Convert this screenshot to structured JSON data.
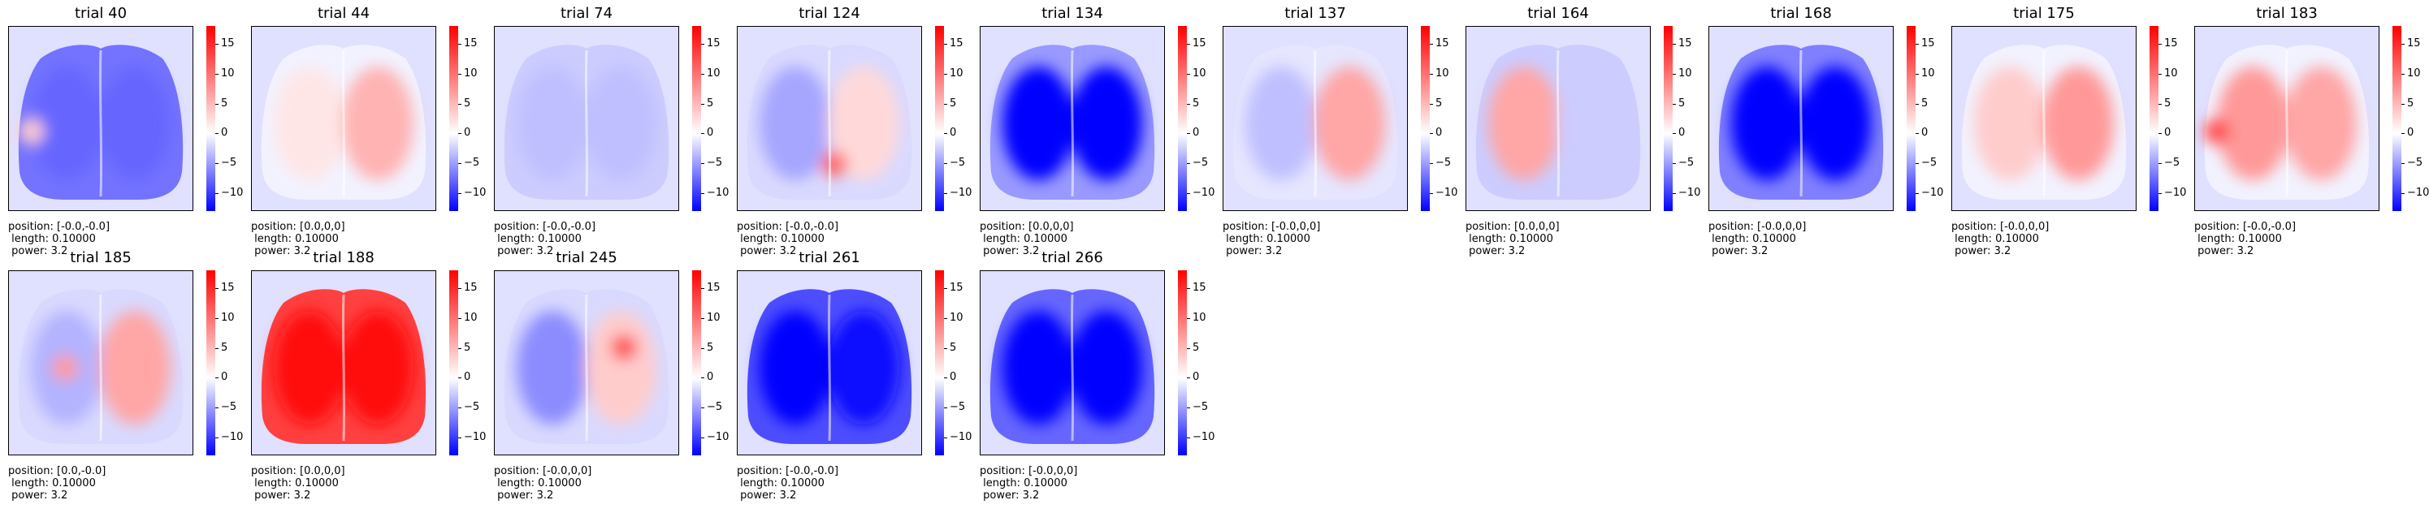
{
  "colors": {
    "negative": "#0000ff",
    "zero": "#ffffff",
    "positive": "#ff0000"
  },
  "chart_data": {
    "type": "heatmap",
    "colormap": "bwr",
    "colorbar_range": [
      -13,
      18
    ],
    "colorbar_ticks": [
      "15",
      "10",
      "5",
      "0",
      "−5",
      "−10"
    ],
    "colorbar_tick_values": [
      15,
      10,
      5,
      0,
      -5,
      -10
    ],
    "panels": [
      {
        "title": "trial 40",
        "caption": [
          "position: [-0.0,-0.0]",
          " length: 0.10000",
          " power: 3.2"
        ],
        "fill": -0.55,
        "left": -0.6,
        "right": -0.6,
        "spot": {
          "side": "left-edge",
          "value": 0.2
        }
      },
      {
        "title": "trial 44",
        "caption": [
          "position: [0.0,0,0]",
          " length: 0.10000",
          " power: 3.2"
        ],
        "fill": -0.05,
        "left": 0.1,
        "right": 0.3,
        "spot": null
      },
      {
        "title": "trial 74",
        "caption": [
          "position: [-0.0,-0.0]",
          " length: 0.10000",
          " power: 3.2"
        ],
        "fill": -0.2,
        "left": -0.25,
        "right": -0.25,
        "spot": null
      },
      {
        "title": "trial 124",
        "caption": [
          "position: [-0.0,-0.0]",
          " length: 0.10000",
          " power: 3.2"
        ],
        "fill": -0.15,
        "left": -0.35,
        "right": 0.15,
        "spot": {
          "side": "center-bottom",
          "value": 0.6
        }
      },
      {
        "title": "trial 134",
        "caption": [
          "position: [0.0,0,0]",
          " length: 0.10000",
          " power: 3.2"
        ],
        "fill": -0.4,
        "left": -1.0,
        "right": -1.0,
        "spot": null
      },
      {
        "title": "trial 137",
        "caption": [
          "position: [-0.0,0,0]",
          " length: 0.10000",
          " power: 3.2"
        ],
        "fill": -0.1,
        "left": -0.25,
        "right": 0.35,
        "spot": null
      },
      {
        "title": "trial 164",
        "caption": [
          "position: [0.0,0,0]",
          " length: 0.10000",
          " power: 3.2"
        ],
        "fill": -0.2,
        "left": 0.35,
        "right": -0.2,
        "spot": null
      },
      {
        "title": "trial 168",
        "caption": [
          "position: [-0.0,0,0]",
          " length: 0.10000",
          " power: 3.2"
        ],
        "fill": -0.5,
        "left": -1.0,
        "right": -1.0,
        "spot": null
      },
      {
        "title": "trial 175",
        "caption": [
          "position: [-0.0,0,0]",
          " length: 0.10000",
          " power: 3.2"
        ],
        "fill": -0.05,
        "left": 0.2,
        "right": 0.4,
        "spot": null
      },
      {
        "title": "trial 183",
        "caption": [
          "position: [-0.0,-0.0]",
          " length: 0.10000",
          " power: 3.2"
        ],
        "fill": -0.05,
        "left": 0.4,
        "right": 0.35,
        "spot": {
          "side": "left-edge",
          "value": 0.7
        }
      },
      {
        "title": "trial 185",
        "caption": [
          "position: [0.0,-0.0]",
          " length: 0.10000",
          " power: 3.2"
        ],
        "fill": -0.15,
        "left": -0.3,
        "right": 0.35,
        "spot": {
          "side": "left-center",
          "value": 0.4
        }
      },
      {
        "title": "trial 188",
        "caption": [
          "position: [0.0,0,0]",
          " length: 0.10000",
          " power: 3.2"
        ],
        "fill": 0.75,
        "left": 0.95,
        "right": 0.95,
        "spot": null
      },
      {
        "title": "trial 245",
        "caption": [
          "position: [-0.0,0,0]",
          " length: 0.10000",
          " power: 3.2"
        ],
        "fill": -0.15,
        "left": -0.45,
        "right": 0.2,
        "spot": {
          "side": "right-top",
          "value": 0.7
        }
      },
      {
        "title": "trial 261",
        "caption": [
          "position: [-0.0,-0.0]",
          " length: 0.10000",
          " power: 3.2"
        ],
        "fill": -0.7,
        "left": -1.0,
        "right": -0.95,
        "spot": null
      },
      {
        "title": "trial 266",
        "caption": [
          "position: [-0.0,0,0]",
          " length: 0.10000",
          " power: 3.2"
        ],
        "fill": -0.6,
        "left": -1.0,
        "right": -1.0,
        "spot": null
      }
    ]
  }
}
